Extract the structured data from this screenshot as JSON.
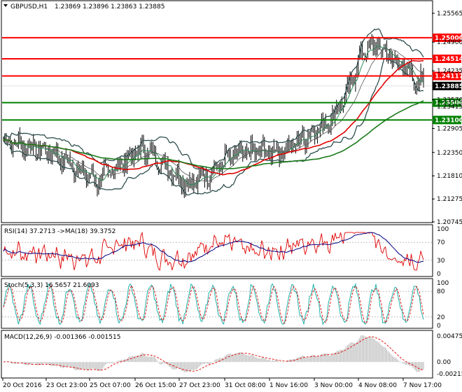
{
  "header": {
    "symbol": "GBPUSD,H1",
    "ohlc": "1.23869 1.23896 1.23863 1.23885"
  },
  "price_axis": [
    "1.25565",
    "1.24900",
    "1.24235",
    "1.23570",
    "1.22905",
    "1.22350",
    "1.21810",
    "1.21275",
    "1.20745"
  ],
  "price_tags": {
    "r1": "1.25000",
    "r2": "1.24514",
    "r3": "1.24117",
    "current": "1.23885",
    "s1": "1.23500",
    "s2": "1.23100",
    "hidden_tick": "1.23415"
  },
  "panels": {
    "rsi": {
      "label": "RSI(14) 37.2713  ->MA(18) 39.3752",
      "ticks": [
        "100",
        "70",
        "30",
        "0"
      ]
    },
    "stoch": {
      "label": "Stoch(5,3,3) 16.5657 21.6093",
      "ticks": [
        "100",
        "80",
        "20",
        "0"
      ]
    },
    "macd": {
      "label": "MACD(12,26,9) -0.001366 -0.001515",
      "ticks": [
        "0.004755",
        "0.00",
        "-0.002153"
      ]
    }
  },
  "time_axis": [
    "20 Oct 2016",
    "23 Oct 23:00",
    "25 Oct 07:00",
    "26 Oct 15:00",
    "27 Oct 23:00",
    "31 Oct 08:00",
    "1 Nov 16:00",
    "3 Nov 00:00",
    "4 Nov 08:00",
    "7 Nov 17:00"
  ],
  "colors": {
    "resistance": "#ff0000",
    "support": "#008000",
    "ma_red": "#e00000",
    "ma_green": "#1a7a1a",
    "bands": "#2f4f4f",
    "rsi_line": "#e00000",
    "rsi_ma": "#000080",
    "stoch_main": "#20b2aa",
    "stoch_signal": "#e00000",
    "macd_hist": "#b0b0b0",
    "macd_signal": "#e00000"
  },
  "chart_data": {
    "type": "line",
    "title": "GBPUSD,H1",
    "x": [
      "20 Oct 2016",
      "23 Oct 23:00",
      "25 Oct 07:00",
      "26 Oct 15:00",
      "27 Oct 23:00",
      "31 Oct 08:00",
      "1 Nov 16:00",
      "3 Nov 00:00",
      "4 Nov 08:00",
      "7 Nov 17:00"
    ],
    "series": [
      {
        "values": [
          1.2262,
          1.2238,
          1.217,
          1.2245,
          1.216,
          1.2232,
          1.224,
          1.231,
          1.2485,
          1.2389
        ]
      }
    ],
    "ylim": [
      1.2055,
      1.2575
    ]
  }
}
